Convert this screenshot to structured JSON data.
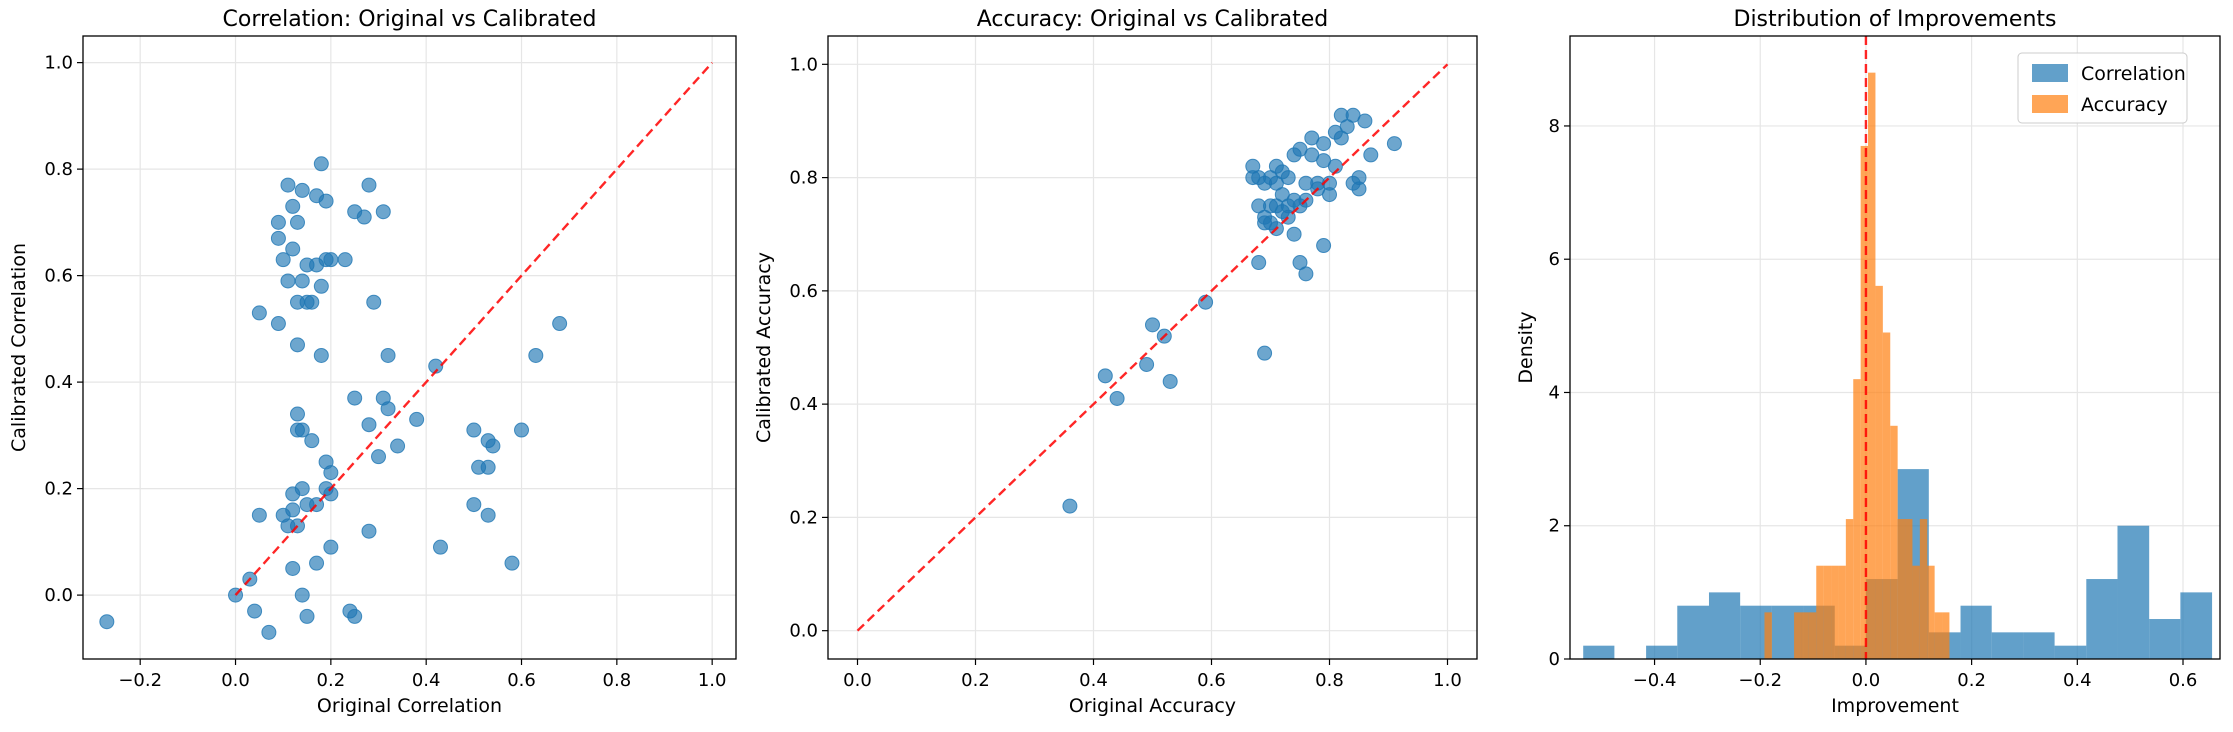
{
  "chart_data": [
    {
      "type": "scatter",
      "title": "Correlation: Original vs Calibrated",
      "xlabel": "Original Correlation",
      "ylabel": "Calibrated Correlation",
      "xlim": [
        -0.32,
        1.05
      ],
      "ylim": [
        -0.12,
        1.05
      ],
      "xticks": [
        -0.2,
        0.0,
        0.2,
        0.4,
        0.6,
        0.8,
        1.0
      ],
      "yticks": [
        0.0,
        0.2,
        0.4,
        0.6,
        0.8,
        1.0
      ],
      "grid": true,
      "color": "#1f77b4",
      "reference_line": {
        "x": [
          0,
          1
        ],
        "y": [
          0,
          1
        ],
        "color": "#ff0000",
        "style": "dashed"
      },
      "points": [
        [
          0.18,
          0.81
        ],
        [
          0.11,
          0.77
        ],
        [
          0.14,
          0.76
        ],
        [
          0.17,
          0.75
        ],
        [
          0.28,
          0.77
        ],
        [
          0.12,
          0.73
        ],
        [
          0.19,
          0.74
        ],
        [
          0.25,
          0.72
        ],
        [
          0.27,
          0.71
        ],
        [
          0.31,
          0.72
        ],
        [
          0.09,
          0.7
        ],
        [
          0.13,
          0.7
        ],
        [
          0.09,
          0.67
        ],
        [
          0.12,
          0.65
        ],
        [
          0.1,
          0.63
        ],
        [
          0.19,
          0.63
        ],
        [
          0.2,
          0.63
        ],
        [
          0.23,
          0.63
        ],
        [
          0.15,
          0.62
        ],
        [
          0.17,
          0.62
        ],
        [
          0.11,
          0.59
        ],
        [
          0.14,
          0.59
        ],
        [
          0.18,
          0.58
        ],
        [
          0.13,
          0.55
        ],
        [
          0.15,
          0.55
        ],
        [
          0.16,
          0.55
        ],
        [
          0.29,
          0.55
        ],
        [
          0.05,
          0.53
        ],
        [
          0.09,
          0.51
        ],
        [
          0.13,
          0.47
        ],
        [
          0.18,
          0.45
        ],
        [
          0.32,
          0.45
        ],
        [
          0.42,
          0.43
        ],
        [
          0.63,
          0.45
        ],
        [
          0.68,
          0.51
        ],
        [
          0.25,
          0.37
        ],
        [
          0.31,
          0.37
        ],
        [
          0.32,
          0.35
        ],
        [
          0.13,
          0.34
        ],
        [
          0.28,
          0.32
        ],
        [
          0.38,
          0.33
        ],
        [
          0.14,
          0.31
        ],
        [
          0.13,
          0.31
        ],
        [
          0.16,
          0.29
        ],
        [
          0.34,
          0.28
        ],
        [
          0.5,
          0.31
        ],
        [
          0.53,
          0.29
        ],
        [
          0.54,
          0.28
        ],
        [
          0.6,
          0.31
        ],
        [
          0.3,
          0.26
        ],
        [
          0.19,
          0.25
        ],
        [
          0.2,
          0.23
        ],
        [
          0.51,
          0.24
        ],
        [
          0.53,
          0.24
        ],
        [
          0.14,
          0.2
        ],
        [
          0.19,
          0.2
        ],
        [
          0.12,
          0.19
        ],
        [
          0.2,
          0.19
        ],
        [
          0.15,
          0.17
        ],
        [
          0.17,
          0.17
        ],
        [
          0.5,
          0.17
        ],
        [
          0.53,
          0.15
        ],
        [
          0.12,
          0.16
        ],
        [
          0.05,
          0.15
        ],
        [
          0.1,
          0.15
        ],
        [
          0.13,
          0.13
        ],
        [
          0.11,
          0.13
        ],
        [
          0.28,
          0.12
        ],
        [
          0.2,
          0.09
        ],
        [
          0.43,
          0.09
        ],
        [
          0.17,
          0.06
        ],
        [
          0.58,
          0.06
        ],
        [
          0.12,
          0.05
        ],
        [
          0.03,
          0.03
        ],
        [
          0.0,
          0.0
        ],
        [
          0.14,
          0.0
        ],
        [
          0.24,
          -0.03
        ],
        [
          0.04,
          -0.03
        ],
        [
          0.15,
          -0.04
        ],
        [
          0.25,
          -0.04
        ],
        [
          -0.27,
          -0.05
        ],
        [
          0.07,
          -0.07
        ]
      ]
    },
    {
      "type": "scatter",
      "title": "Accuracy: Original vs Calibrated",
      "xlabel": "Original Accuracy",
      "ylabel": "Calibrated Accuracy",
      "xlim": [
        -0.05,
        1.05
      ],
      "ylim": [
        -0.05,
        1.05
      ],
      "xticks": [
        0.0,
        0.2,
        0.4,
        0.6,
        0.8,
        1.0
      ],
      "yticks": [
        0.0,
        0.2,
        0.4,
        0.6,
        0.8,
        1.0
      ],
      "grid": true,
      "color": "#1f77b4",
      "reference_line": {
        "x": [
          0,
          1
        ],
        "y": [
          0,
          1
        ],
        "color": "#ff0000",
        "style": "dashed"
      },
      "points": [
        [
          0.82,
          0.91
        ],
        [
          0.84,
          0.91
        ],
        [
          0.86,
          0.9
        ],
        [
          0.83,
          0.89
        ],
        [
          0.81,
          0.88
        ],
        [
          0.77,
          0.87
        ],
        [
          0.82,
          0.87
        ],
        [
          0.91,
          0.86
        ],
        [
          0.79,
          0.86
        ],
        [
          0.87,
          0.84
        ],
        [
          0.74,
          0.84
        ],
        [
          0.77,
          0.84
        ],
        [
          0.75,
          0.85
        ],
        [
          0.79,
          0.83
        ],
        [
          0.81,
          0.82
        ],
        [
          0.67,
          0.82
        ],
        [
          0.71,
          0.82
        ],
        [
          0.72,
          0.81
        ],
        [
          0.7,
          0.8
        ],
        [
          0.73,
          0.8
        ],
        [
          0.85,
          0.8
        ],
        [
          0.67,
          0.8
        ],
        [
          0.68,
          0.8
        ],
        [
          0.69,
          0.79
        ],
        [
          0.71,
          0.79
        ],
        [
          0.76,
          0.79
        ],
        [
          0.78,
          0.79
        ],
        [
          0.8,
          0.79
        ],
        [
          0.84,
          0.79
        ],
        [
          0.85,
          0.78
        ],
        [
          0.78,
          0.78
        ],
        [
          0.8,
          0.77
        ],
        [
          0.72,
          0.77
        ],
        [
          0.74,
          0.76
        ],
        [
          0.76,
          0.76
        ],
        [
          0.68,
          0.75
        ],
        [
          0.7,
          0.75
        ],
        [
          0.71,
          0.75
        ],
        [
          0.73,
          0.75
        ],
        [
          0.75,
          0.75
        ],
        [
          0.72,
          0.74
        ],
        [
          0.73,
          0.73
        ],
        [
          0.69,
          0.73
        ],
        [
          0.7,
          0.72
        ],
        [
          0.69,
          0.72
        ],
        [
          0.71,
          0.71
        ],
        [
          0.74,
          0.7
        ],
        [
          0.79,
          0.68
        ],
        [
          0.68,
          0.65
        ],
        [
          0.75,
          0.65
        ],
        [
          0.76,
          0.63
        ],
        [
          0.59,
          0.58
        ],
        [
          0.5,
          0.54
        ],
        [
          0.52,
          0.52
        ],
        [
          0.69,
          0.49
        ],
        [
          0.49,
          0.47
        ],
        [
          0.42,
          0.45
        ],
        [
          0.53,
          0.44
        ],
        [
          0.44,
          0.41
        ],
        [
          0.36,
          0.22
        ]
      ]
    },
    {
      "type": "histogram",
      "title": "Distribution of Improvements",
      "xlabel": "Improvement",
      "ylabel": "Density",
      "xlim": [
        -0.56,
        0.67
      ],
      "ylim": [
        0,
        9.35
      ],
      "xticks": [
        -0.4,
        -0.2,
        0.0,
        0.2,
        0.4,
        0.6
      ],
      "yticks": [
        0,
        2,
        4,
        6,
        8
      ],
      "grid": true,
      "legend_position": "top-right",
      "vline": {
        "x": 0.0,
        "color": "#ff0000",
        "style": "dashed"
      },
      "series": [
        {
          "name": "Correlation",
          "color": "#1f77b4",
          "bin_edges": [
            -0.535,
            -0.476,
            -0.416,
            -0.357,
            -0.297,
            -0.238,
            -0.178,
            -0.119,
            -0.059,
            0.0,
            0.06,
            0.119,
            0.179,
            0.238,
            0.298,
            0.357,
            0.417,
            0.476,
            0.536,
            0.595,
            0.655
          ],
          "values": [
            0.2,
            0.0,
            0.2,
            0.8,
            1.0,
            0.8,
            0.8,
            0.8,
            0.2,
            1.2,
            2.85,
            0.4,
            0.8,
            0.4,
            0.4,
            0.2,
            1.2,
            2.0,
            0.6,
            1.0
          ]
        },
        {
          "name": "Accuracy",
          "color": "#ff7f0e",
          "bin_edges": [
            -0.192,
            -0.178,
            -0.164,
            -0.15,
            -0.136,
            -0.122,
            -0.108,
            -0.094,
            -0.08,
            -0.066,
            -0.052,
            -0.038,
            -0.024,
            -0.01,
            0.004,
            0.018,
            0.032,
            0.046,
            0.06,
            0.074,
            0.088,
            0.102,
            0.116,
            0.13,
            0.144,
            0.158
          ],
          "values": [
            0.7,
            0.0,
            0.0,
            0.0,
            0.7,
            0.7,
            0.7,
            1.4,
            1.4,
            1.4,
            1.4,
            2.1,
            4.2,
            7.7,
            8.8,
            5.6,
            4.9,
            3.5,
            2.1,
            2.1,
            1.4,
            2.1,
            1.4,
            0.7,
            0.7
          ]
        }
      ]
    }
  ]
}
